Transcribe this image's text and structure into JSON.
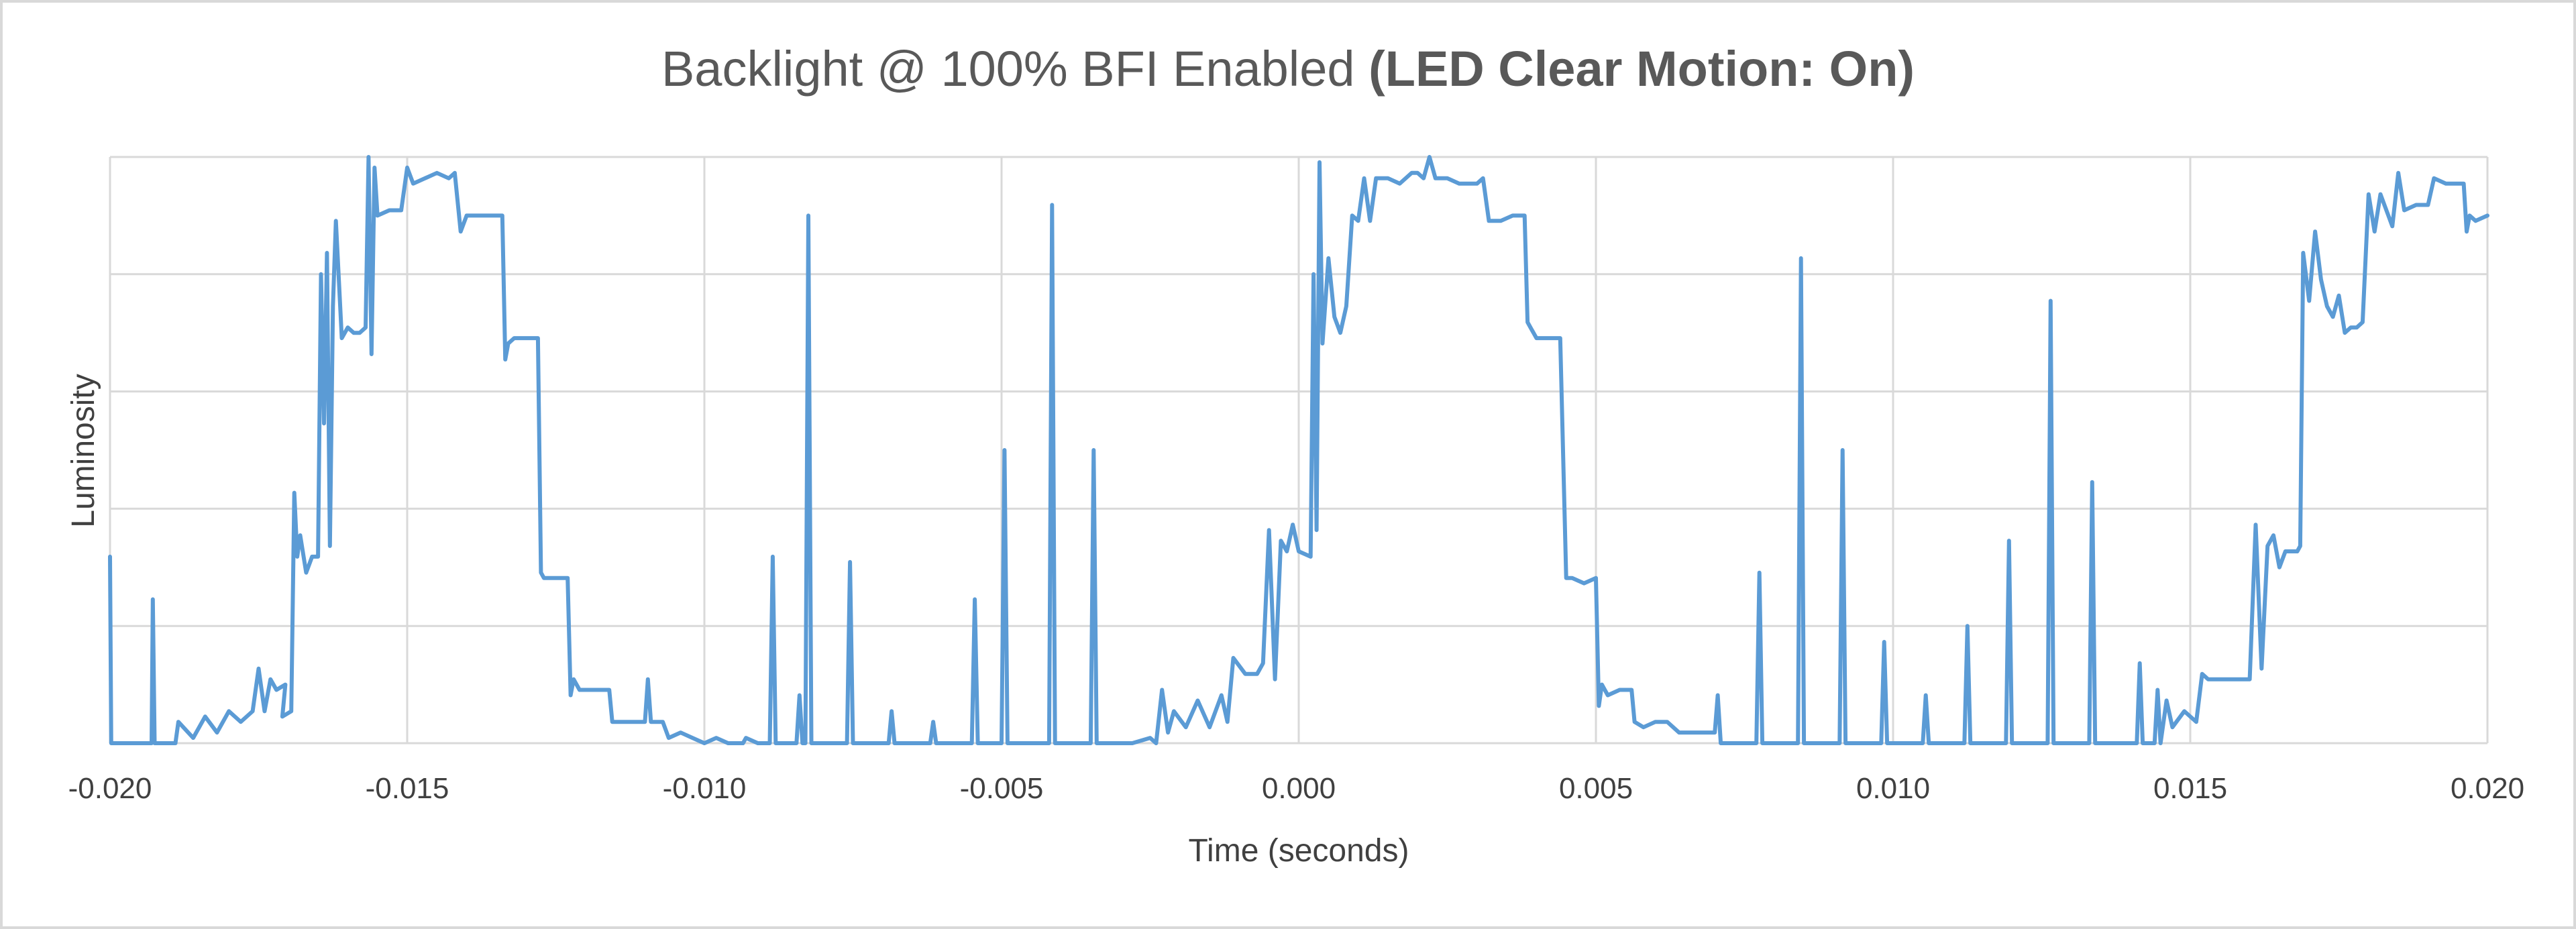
{
  "chart_data": {
    "type": "line",
    "title": "Backlight @ 100% BFI Enabled",
    "title_bold": "(LED Clear Motion: On)",
    "xlabel": "Time (seconds)",
    "ylabel": "Luminosity",
    "xlim": [
      -0.02,
      0.02
    ],
    "ylim": [
      0,
      1.1
    ],
    "x_ticks": [
      -0.02,
      -0.015,
      -0.01,
      -0.005,
      0.0,
      0.005,
      0.01,
      0.015,
      0.02
    ],
    "x_tick_labels": [
      "-0.020",
      "-0.015",
      "-0.010",
      "-0.005",
      "0.000",
      "0.005",
      "0.010",
      "0.015",
      "0.020"
    ],
    "y_gridlines": [
      0,
      0.22,
      0.44,
      0.66,
      0.88,
      1.1
    ],
    "y_tick_labels_shown": false,
    "grid": true,
    "legend": "none",
    "series": [
      {
        "color": "#5b9bd5",
        "points": [
          [
            -0.02,
            0.35
          ],
          [
            -0.01998,
            0.0
          ],
          [
            -0.0193,
            0.0
          ],
          [
            -0.01928,
            0.27
          ],
          [
            -0.01925,
            0.0
          ],
          [
            -0.0189,
            0.0
          ],
          [
            -0.01885,
            0.04
          ],
          [
            -0.0186,
            0.01
          ],
          [
            -0.0184,
            0.05
          ],
          [
            -0.0182,
            0.02
          ],
          [
            -0.018,
            0.06
          ],
          [
            -0.0178,
            0.04
          ],
          [
            -0.0176,
            0.06
          ],
          [
            -0.0175,
            0.14
          ],
          [
            -0.0174,
            0.06
          ],
          [
            -0.0173,
            0.12
          ],
          [
            -0.0172,
            0.1
          ],
          [
            -0.01705,
            0.11
          ],
          [
            -0.0171,
            0.05
          ],
          [
            -0.01695,
            0.06
          ],
          [
            -0.0169,
            0.47
          ],
          [
            -0.01685,
            0.35
          ],
          [
            -0.0168,
            0.39
          ],
          [
            -0.0167,
            0.32
          ],
          [
            -0.0166,
            0.35
          ],
          [
            -0.0165,
            0.35
          ],
          [
            -0.01645,
            0.88
          ],
          [
            -0.0164,
            0.6
          ],
          [
            -0.01635,
            0.92
          ],
          [
            -0.0163,
            0.37
          ],
          [
            -0.01625,
            0.82
          ],
          [
            -0.0162,
            0.98
          ],
          [
            -0.0161,
            0.76
          ],
          [
            -0.016,
            0.78
          ],
          [
            -0.0159,
            0.77
          ],
          [
            -0.0158,
            0.77
          ],
          [
            -0.0157,
            0.78
          ],
          [
            -0.01565,
            1.1
          ],
          [
            -0.0156,
            0.73
          ],
          [
            -0.01555,
            1.08
          ],
          [
            -0.0155,
            0.99
          ],
          [
            -0.0153,
            1.0
          ],
          [
            -0.0151,
            1.0
          ],
          [
            -0.015,
            1.08
          ],
          [
            -0.0149,
            1.05
          ],
          [
            -0.0147,
            1.06
          ],
          [
            -0.0145,
            1.07
          ],
          [
            -0.0143,
            1.06
          ],
          [
            -0.0142,
            1.07
          ],
          [
            -0.0141,
            0.96
          ],
          [
            -0.014,
            0.99
          ],
          [
            -0.0138,
            0.99
          ],
          [
            -0.0136,
            0.99
          ],
          [
            -0.0134,
            0.99
          ],
          [
            -0.01335,
            0.72
          ],
          [
            -0.0133,
            0.75
          ],
          [
            -0.0132,
            0.76
          ],
          [
            -0.013,
            0.76
          ],
          [
            -0.0128,
            0.76
          ],
          [
            -0.01275,
            0.32
          ],
          [
            -0.0127,
            0.31
          ],
          [
            -0.0126,
            0.31
          ],
          [
            -0.0124,
            0.31
          ],
          [
            -0.0123,
            0.31
          ],
          [
            -0.01225,
            0.09
          ],
          [
            -0.0122,
            0.12
          ],
          [
            -0.0121,
            0.1
          ],
          [
            -0.0118,
            0.1
          ],
          [
            -0.0116,
            0.1
          ],
          [
            -0.01155,
            0.04
          ],
          [
            -0.0113,
            0.04
          ],
          [
            -0.0111,
            0.04
          ],
          [
            -0.011,
            0.04
          ],
          [
            -0.01095,
            0.12
          ],
          [
            -0.0109,
            0.04
          ],
          [
            -0.0107,
            0.04
          ],
          [
            -0.0106,
            0.01
          ],
          [
            -0.0104,
            0.02
          ],
          [
            -0.0102,
            0.01
          ],
          [
            -0.01,
            0.0
          ],
          [
            -0.0098,
            0.01
          ],
          [
            -0.0096,
            0.0
          ],
          [
            -0.00935,
            0.0
          ],
          [
            -0.0093,
            0.01
          ],
          [
            -0.0091,
            0.0
          ],
          [
            -0.0089,
            0.0
          ],
          [
            -0.00885,
            0.35
          ],
          [
            -0.0088,
            0.0
          ],
          [
            -0.0085,
            0.0
          ],
          [
            -0.00845,
            0.0
          ],
          [
            -0.0084,
            0.09
          ],
          [
            -0.00835,
            0.0
          ],
          [
            -0.0083,
            0.0
          ],
          [
            -0.00825,
            0.99
          ],
          [
            -0.0082,
            0.0
          ],
          [
            -0.0076,
            0.0
          ],
          [
            -0.00755,
            0.34
          ],
          [
            -0.0075,
            0.0
          ],
          [
            -0.0069,
            0.0
          ],
          [
            -0.00685,
            0.06
          ],
          [
            -0.0068,
            0.0
          ],
          [
            -0.0062,
            0.0
          ],
          [
            -0.00615,
            0.04
          ],
          [
            -0.0061,
            0.0
          ],
          [
            -0.0055,
            0.0
          ],
          [
            -0.00545,
            0.27
          ],
          [
            -0.0054,
            0.0
          ],
          [
            -0.005,
            0.0
          ],
          [
            -0.00495,
            0.55
          ],
          [
            -0.0049,
            0.0
          ],
          [
            -0.0042,
            0.0
          ],
          [
            -0.00415,
            1.01
          ],
          [
            -0.0041,
            0.0
          ],
          [
            -0.0035,
            0.0
          ],
          [
            -0.00345,
            0.55
          ],
          [
            -0.0034,
            0.0
          ],
          [
            -0.0028,
            0.0
          ],
          [
            -0.0025,
            0.01
          ],
          [
            -0.0024,
            0.0
          ],
          [
            -0.0023,
            0.1
          ],
          [
            -0.0022,
            0.02
          ],
          [
            -0.0021,
            0.06
          ],
          [
            -0.0019,
            0.03
          ],
          [
            -0.0017,
            0.08
          ],
          [
            -0.0015,
            0.03
          ],
          [
            -0.0013,
            0.09
          ],
          [
            -0.0012,
            0.04
          ],
          [
            -0.0011,
            0.16
          ],
          [
            -0.0009,
            0.13
          ],
          [
            -0.0007,
            0.13
          ],
          [
            -0.0006,
            0.15
          ],
          [
            -0.0005,
            0.4
          ],
          [
            -0.0004,
            0.12
          ],
          [
            -0.0003,
            0.38
          ],
          [
            -0.0002,
            0.36
          ],
          [
            -0.0001,
            0.41
          ],
          [
            0.0,
            0.36
          ],
          [
            0.0002,
            0.35
          ],
          [
            0.00025,
            0.88
          ],
          [
            0.0003,
            0.4
          ],
          [
            0.00035,
            1.09
          ],
          [
            0.0004,
            0.75
          ],
          [
            0.0005,
            0.91
          ],
          [
            0.0006,
            0.8
          ],
          [
            0.0007,
            0.77
          ],
          [
            0.0008,
            0.82
          ],
          [
            0.0009,
            0.99
          ],
          [
            0.001,
            0.98
          ],
          [
            0.0011,
            1.06
          ],
          [
            0.0012,
            0.98
          ],
          [
            0.0013,
            1.06
          ],
          [
            0.0015,
            1.06
          ],
          [
            0.0017,
            1.05
          ],
          [
            0.0019,
            1.07
          ],
          [
            0.002,
            1.07
          ],
          [
            0.0021,
            1.06
          ],
          [
            0.0022,
            1.1
          ],
          [
            0.0023,
            1.06
          ],
          [
            0.0025,
            1.06
          ],
          [
            0.0027,
            1.05
          ],
          [
            0.0029,
            1.05
          ],
          [
            0.003,
            1.05
          ],
          [
            0.0031,
            1.06
          ],
          [
            0.0032,
            0.98
          ],
          [
            0.0034,
            0.98
          ],
          [
            0.0036,
            0.99
          ],
          [
            0.0038,
            0.99
          ],
          [
            0.00385,
            0.79
          ],
          [
            0.0039,
            0.78
          ],
          [
            0.004,
            0.76
          ],
          [
            0.0042,
            0.76
          ],
          [
            0.0044,
            0.76
          ],
          [
            0.0045,
            0.31
          ],
          [
            0.0046,
            0.31
          ],
          [
            0.0048,
            0.3
          ],
          [
            0.005,
            0.31
          ],
          [
            0.00505,
            0.07
          ],
          [
            0.0051,
            0.11
          ],
          [
            0.0052,
            0.09
          ],
          [
            0.0054,
            0.1
          ],
          [
            0.0056,
            0.1
          ],
          [
            0.00565,
            0.04
          ],
          [
            0.0058,
            0.03
          ],
          [
            0.006,
            0.04
          ],
          [
            0.0062,
            0.04
          ],
          [
            0.0064,
            0.02
          ],
          [
            0.0066,
            0.02
          ],
          [
            0.0068,
            0.02
          ],
          [
            0.007,
            0.02
          ],
          [
            0.00705,
            0.09
          ],
          [
            0.0071,
            0.0
          ],
          [
            0.0077,
            0.0
          ],
          [
            0.00775,
            0.32
          ],
          [
            0.0078,
            0.0
          ],
          [
            0.0084,
            0.0
          ],
          [
            0.00845,
            0.91
          ],
          [
            0.0085,
            0.0
          ],
          [
            0.0091,
            0.0
          ],
          [
            0.00915,
            0.55
          ],
          [
            0.0092,
            0.0
          ],
          [
            0.0098,
            0.0
          ],
          [
            0.00985,
            0.19
          ],
          [
            0.0099,
            0.0
          ],
          [
            0.0105,
            0.0
          ],
          [
            0.01055,
            0.09
          ],
          [
            0.0106,
            0.0
          ],
          [
            0.0112,
            0.0
          ],
          [
            0.01125,
            0.22
          ],
          [
            0.0113,
            0.0
          ],
          [
            0.0119,
            0.0
          ],
          [
            0.01195,
            0.38
          ],
          [
            0.012,
            0.0
          ],
          [
            0.0126,
            0.0
          ],
          [
            0.01265,
            0.83
          ],
          [
            0.0127,
            0.0
          ],
          [
            0.0133,
            0.0
          ],
          [
            0.01335,
            0.49
          ],
          [
            0.0134,
            0.0
          ],
          [
            0.0141,
            0.0
          ],
          [
            0.01415,
            0.15
          ],
          [
            0.0142,
            0.0
          ],
          [
            0.0144,
            0.0
          ],
          [
            0.01445,
            0.1
          ],
          [
            0.0145,
            0.0
          ],
          [
            0.0146,
            0.08
          ],
          [
            0.0147,
            0.03
          ],
          [
            0.0149,
            0.06
          ],
          [
            0.0151,
            0.04
          ],
          [
            0.0152,
            0.13
          ],
          [
            0.0153,
            0.12
          ],
          [
            0.0155,
            0.12
          ],
          [
            0.0157,
            0.12
          ],
          [
            0.0159,
            0.12
          ],
          [
            0.016,
            0.12
          ],
          [
            0.0161,
            0.41
          ],
          [
            0.0162,
            0.14
          ],
          [
            0.0163,
            0.37
          ],
          [
            0.0164,
            0.39
          ],
          [
            0.0165,
            0.33
          ],
          [
            0.0166,
            0.36
          ],
          [
            0.0168,
            0.36
          ],
          [
            0.01685,
            0.37
          ],
          [
            0.0169,
            0.92
          ],
          [
            0.017,
            0.83
          ],
          [
            0.0171,
            0.96
          ],
          [
            0.0172,
            0.87
          ],
          [
            0.0173,
            0.82
          ],
          [
            0.0174,
            0.8
          ],
          [
            0.0175,
            0.84
          ],
          [
            0.0176,
            0.77
          ],
          [
            0.0177,
            0.78
          ],
          [
            0.0178,
            0.78
          ],
          [
            0.0179,
            0.79
          ],
          [
            0.018,
            1.03
          ],
          [
            0.0181,
            0.96
          ],
          [
            0.0182,
            1.03
          ],
          [
            0.0184,
            0.97
          ],
          [
            0.0185,
            1.07
          ],
          [
            0.0186,
            1.0
          ],
          [
            0.0188,
            1.01
          ],
          [
            0.019,
            1.01
          ],
          [
            0.0191,
            1.06
          ],
          [
            0.0193,
            1.05
          ],
          [
            0.0195,
            1.05
          ],
          [
            0.0196,
            1.05
          ],
          [
            0.01965,
            0.96
          ],
          [
            0.0197,
            0.99
          ],
          [
            0.0198,
            0.98
          ],
          [
            0.02,
            0.99
          ]
        ]
      }
    ]
  }
}
